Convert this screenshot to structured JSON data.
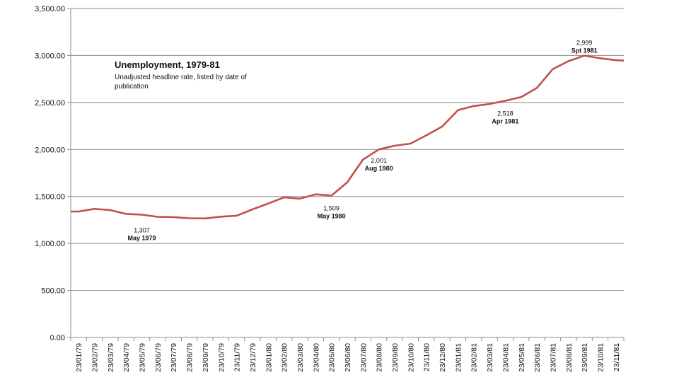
{
  "chart_data": {
    "type": "line",
    "title": "Unemployment, 1979-81",
    "subtitle_lines": [
      "Unadjusted headline rate, listed by date of",
      "publication"
    ],
    "ylim": [
      0,
      3500
    ],
    "yticks": [
      "0.00",
      "500.00",
      "1,000.00",
      "1,500.00",
      "2,000.00",
      "2,500.00",
      "3,000.00",
      "3,500.00"
    ],
    "grid": true,
    "line_color": "#c0504d",
    "categories": [
      "23/01/79",
      "23/02/79",
      "23/03/79",
      "23/04/79",
      "23/05/79",
      "23/06/79",
      "23/07/79",
      "23/08/79",
      "23/09/79",
      "23/10/79",
      "23/11/79",
      "23/12/79",
      "23/01/80",
      "23/02/80",
      "23/03/80",
      "23/04/80",
      "23/05/80",
      "23/06/80",
      "23/07/80",
      "23/08/80",
      "23/09/80",
      "23/10/80",
      "23/11/80",
      "23/12/80",
      "23/01/81",
      "23/02/81",
      "23/03/81",
      "23/04/81",
      "23/05/81",
      "23/06/81",
      "23/07/81",
      "23/08/81",
      "23/09/81",
      "23/10/81",
      "23/11/81"
    ],
    "series": [
      {
        "values": [
          1340,
          1368,
          1355,
          1314,
          1307,
          1283,
          1280,
          1268,
          1266,
          1285,
          1295,
          1362,
          1425,
          1490,
          1477,
          1523,
          1509,
          1651,
          1893,
          2001,
          2040,
          2062,
          2150,
          2244,
          2418,
          2462,
          2484,
          2518,
          2558,
          2655,
          2855,
          2940,
          2999,
          2970,
          2950
        ]
      }
    ],
    "points_per_category": 2,
    "annotations": [
      {
        "value": "1,307",
        "label": "May 1979",
        "index": 4
      },
      {
        "value": "1,509",
        "label": "May 1980",
        "index": 16
      },
      {
        "value": "2,001",
        "label": "Aug 1980",
        "index": 19
      },
      {
        "value": "2,518",
        "label": "Apr 1981",
        "index": 27
      },
      {
        "value": "2,999",
        "label": "Spt 1981",
        "index": 32
      }
    ]
  }
}
